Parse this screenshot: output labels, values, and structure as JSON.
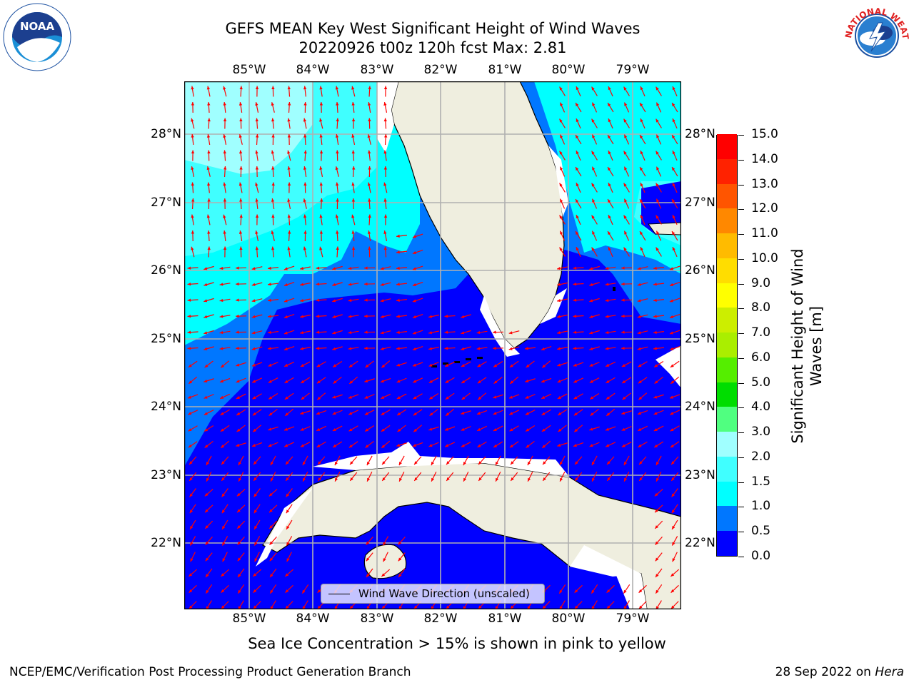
{
  "header": {
    "title_line1": "GEFS MEAN Key West Significant Height of Wind Waves",
    "title_line2": "20220926 t00z 120h fcst   Max: 2.81"
  },
  "logos": {
    "noaa": {
      "icon": "noaa-logo",
      "text": "NOAA",
      "ring_text": "NATIONAL OCEANIC AND ATMOSPHERIC ADMINISTRATION · U.S. DEPARTMENT OF COMMERCE"
    },
    "nws": {
      "icon": "nws-logo",
      "ring_text": "NATIONAL WEATHER SERVICE"
    }
  },
  "map": {
    "lon_labels": [
      "85°W",
      "84°W",
      "83°W",
      "82°W",
      "81°W",
      "80°W",
      "79°W"
    ],
    "lat_labels": [
      "28°N",
      "27°N",
      "26°N",
      "25°N",
      "24°N",
      "23°N",
      "22°N"
    ],
    "gridlines": true,
    "colors": {
      "land": "#efeedf",
      "coast": "#000000",
      "grid": "#b0b0b0",
      "arrow": "#ff0000",
      "no_data": "#ffffff"
    },
    "legend": {
      "label": "Wind Wave Direction (unscaled)",
      "placement": "bottom-center"
    }
  },
  "colorbar": {
    "title_line1": "Significant Height of Wind",
    "title_line2": "Waves [m]",
    "tick_labels": [
      "0.0",
      "0.5",
      "1.0",
      "1.5",
      "2.0",
      "3.0",
      "4.0",
      "5.0",
      "6.0",
      "7.0",
      "8.0",
      "9.0",
      "10.0",
      "11.0",
      "12.0",
      "13.0",
      "14.0",
      "15.0"
    ],
    "colors": [
      "#0000ff",
      "#0077ff",
      "#00ffff",
      "#40ffff",
      "#a0ffff",
      "#50ff80",
      "#00dd00",
      "#55ee00",
      "#aaee00",
      "#ccee00",
      "#ffff00",
      "#ffdd00",
      "#ffbb00",
      "#ff8800",
      "#ff5500",
      "#ff2200",
      "#ff0000"
    ]
  },
  "notes": {
    "ice": "Sea Ice Concentration > 15% is shown in pink to yellow"
  },
  "footer": {
    "left": "NCEP/EMC/Verification Post Processing Product Generation Branch",
    "right_date": "28 Sep 2022 on ",
    "right_machine": "Hera"
  }
}
